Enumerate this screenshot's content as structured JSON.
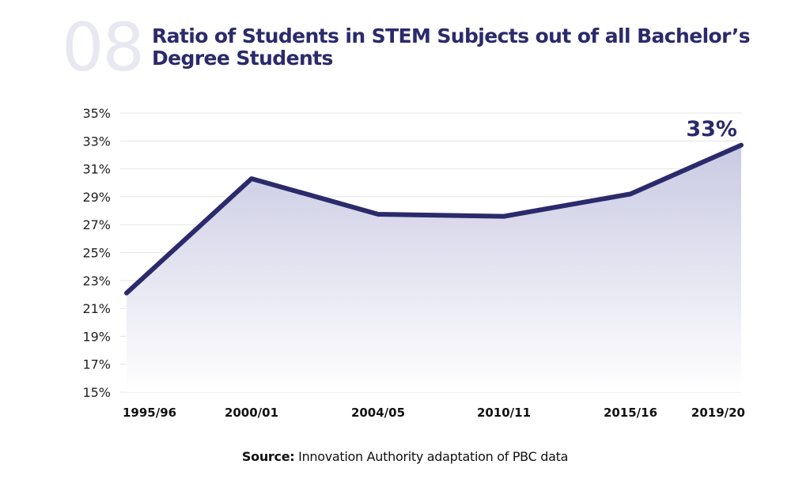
{
  "header": {
    "number": "08",
    "title_line1": "Ratio of Students in STEM Subjects out of all Bachelor’s",
    "title_line2": "Degree Students"
  },
  "source": {
    "label": "Source:",
    "text": "Innovation Authority adaptation of PBC data"
  },
  "colors": {
    "line": "#2b2a6b",
    "fill_top": "#c9c9e3",
    "fill_bottom": "#ffffff",
    "grid": "#e4e4e4"
  },
  "chart_data": {
    "type": "area",
    "title": "Ratio of Students in STEM Subjects out of all Bachelor’s Degree Students",
    "categories": [
      "1995/96",
      "2000/01",
      "2004/05",
      "2010/11",
      "2015/16",
      "2019/20"
    ],
    "values": [
      22.1,
      30.3,
      27.75,
      27.6,
      29.2,
      32.7
    ],
    "ylim": [
      15,
      35
    ],
    "yticks": [
      "15%",
      "17%",
      "19%",
      "21%",
      "23%",
      "25%",
      "27%",
      "29%",
      "31%",
      "33%",
      "35%"
    ],
    "ytick_values": [
      15,
      17,
      19,
      21,
      23,
      25,
      27,
      29,
      31,
      33,
      35
    ],
    "annotation": "33%",
    "grid": true,
    "xlabel": "",
    "ylabel": ""
  }
}
